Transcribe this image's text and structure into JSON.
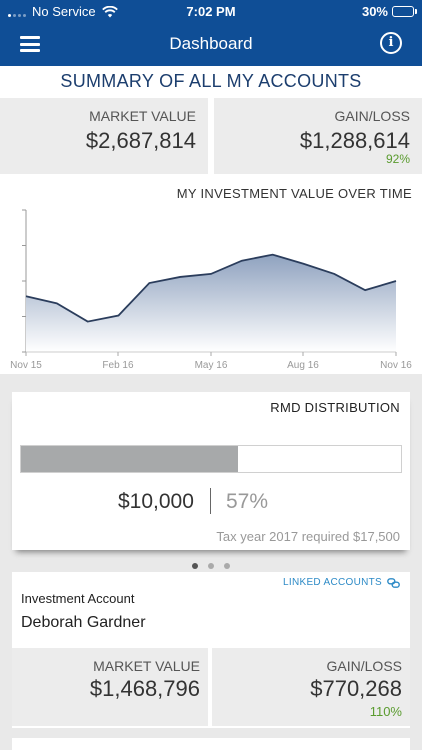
{
  "status_bar": {
    "carrier": "No Service",
    "time": "7:02 PM",
    "battery_percent": "30%",
    "battery_level": 0.3,
    "icons": [
      "signal-icon",
      "wifi-icon",
      "battery-icon"
    ]
  },
  "navbar": {
    "title": "Dashboard",
    "menu_icon": "hamburger-menu-icon",
    "info_icon": "info-icon",
    "info_glyph": "i"
  },
  "summary": {
    "heading": "SUMMARY OF ALL MY ACCOUNTS",
    "market_value_label": "MARKET VALUE",
    "market_value": "$2,687,814",
    "gain_loss_label": "GAIN/LOSS",
    "gain_loss": "$1,288,614",
    "gain_loss_percent": "92%",
    "trend_icon": "arrow-up-icon",
    "gain_color": "#5a9b2f"
  },
  "chart_data": {
    "type": "area",
    "title": "MY INVESTMENT VALUE OVER TIME",
    "x_ticks": [
      "Nov 15",
      "Feb 16",
      "May 16",
      "Aug 16",
      "Nov 16"
    ],
    "values": [
      55,
      48,
      30,
      36,
      68,
      74,
      77,
      90,
      96,
      87,
      77,
      61,
      70
    ],
    "ylim": [
      0,
      140
    ],
    "grid": false,
    "line_color": "#2b3d5c",
    "fill_top_color": "#8fa2bf",
    "fill_bottom_color": "#ffffff"
  },
  "rmd": {
    "title": "RMD DISTRIBUTION",
    "amount": "$10,000",
    "percent_label": "57%",
    "progress": 0.57,
    "note": "Tax year 2017 required $17,500"
  },
  "pager": {
    "count": 3,
    "active_index": 0
  },
  "account": {
    "linked_label": "LINKED ACCOUNTS",
    "linked_icon": "link-icon",
    "type": "Investment Account",
    "name": "Deborah Gardner",
    "market_value_label": "MARKET VALUE",
    "market_value": "$1,468,796",
    "gain_loss_label": "GAIN/LOSS",
    "gain_loss": "$770,268",
    "gain_loss_percent": "110%",
    "trend_icon": "arrow-up-icon"
  }
}
